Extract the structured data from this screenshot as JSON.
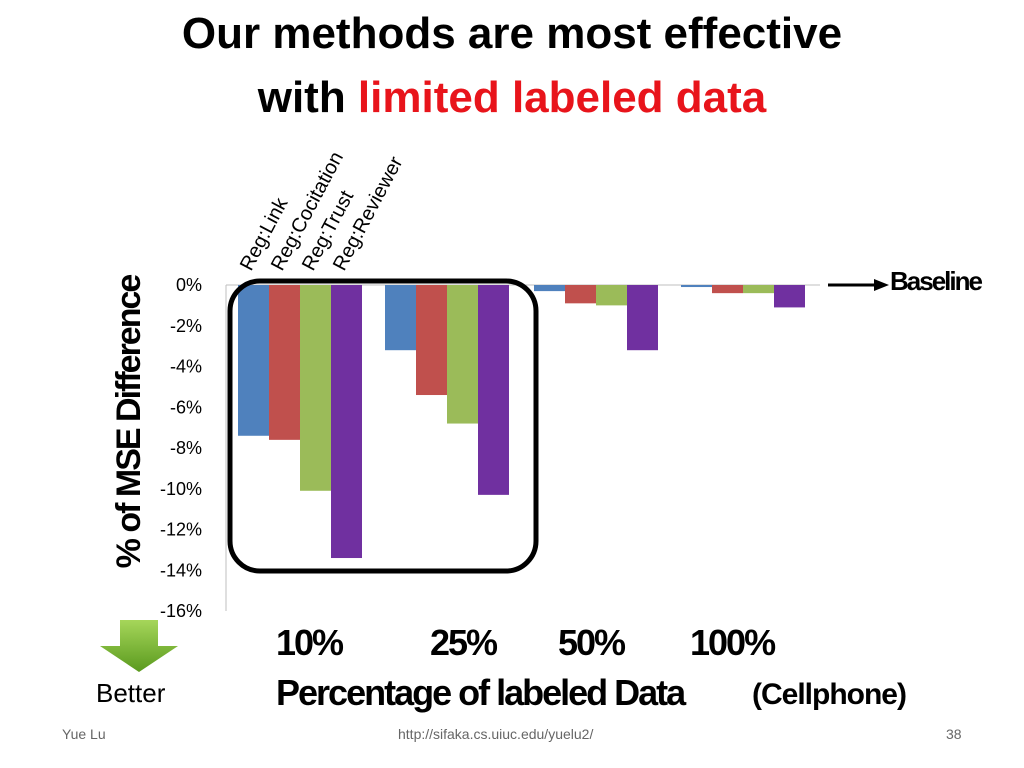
{
  "title": {
    "line1": "Our methods are most effective",
    "line2_prefix": "with ",
    "line2_highlight": "limited labeled data"
  },
  "colors": {
    "highlight": "#e8141b"
  },
  "annotations": {
    "baseline": "Baseline",
    "better": "Better",
    "dataset": "(Cellphone)",
    "better_arrow_icon": "down-arrow-icon",
    "baseline_arrow_icon": "right-arrow-icon"
  },
  "footer": {
    "author": "Yue Lu",
    "url": "http://sifaka.cs.uiuc.edu/yuelu2/",
    "page": "38"
  },
  "chart_data": {
    "type": "bar",
    "ylabel": "% of MSE Difference",
    "xlabel": "Percentage of labeled Data",
    "categories": [
      "10%",
      "25%",
      "50%",
      "100%"
    ],
    "ylim": [
      -16,
      0
    ],
    "yticks": [
      "0%",
      "-2%",
      "-4%",
      "-6%",
      "-8%",
      "-10%",
      "-12%",
      "-14%",
      "-16%"
    ],
    "legend_placement": "rotated labels above first group",
    "series": [
      {
        "name": "Reg:Link",
        "color": "#4f81bd",
        "values": [
          -7.4,
          -3.2,
          -0.3,
          -0.1
        ]
      },
      {
        "name": "Reg:Cocitation",
        "color": "#c0504d",
        "values": [
          -7.6,
          -5.4,
          -0.9,
          -0.4
        ]
      },
      {
        "name": "Reg:Trust",
        "color": "#9bbb59",
        "values": [
          -10.1,
          -6.8,
          -1.0,
          -0.4
        ]
      },
      {
        "name": "Reg:Reviewer",
        "color": "#7030a0",
        "values": [
          -13.4,
          -10.3,
          -3.2,
          -1.1
        ]
      }
    ]
  }
}
